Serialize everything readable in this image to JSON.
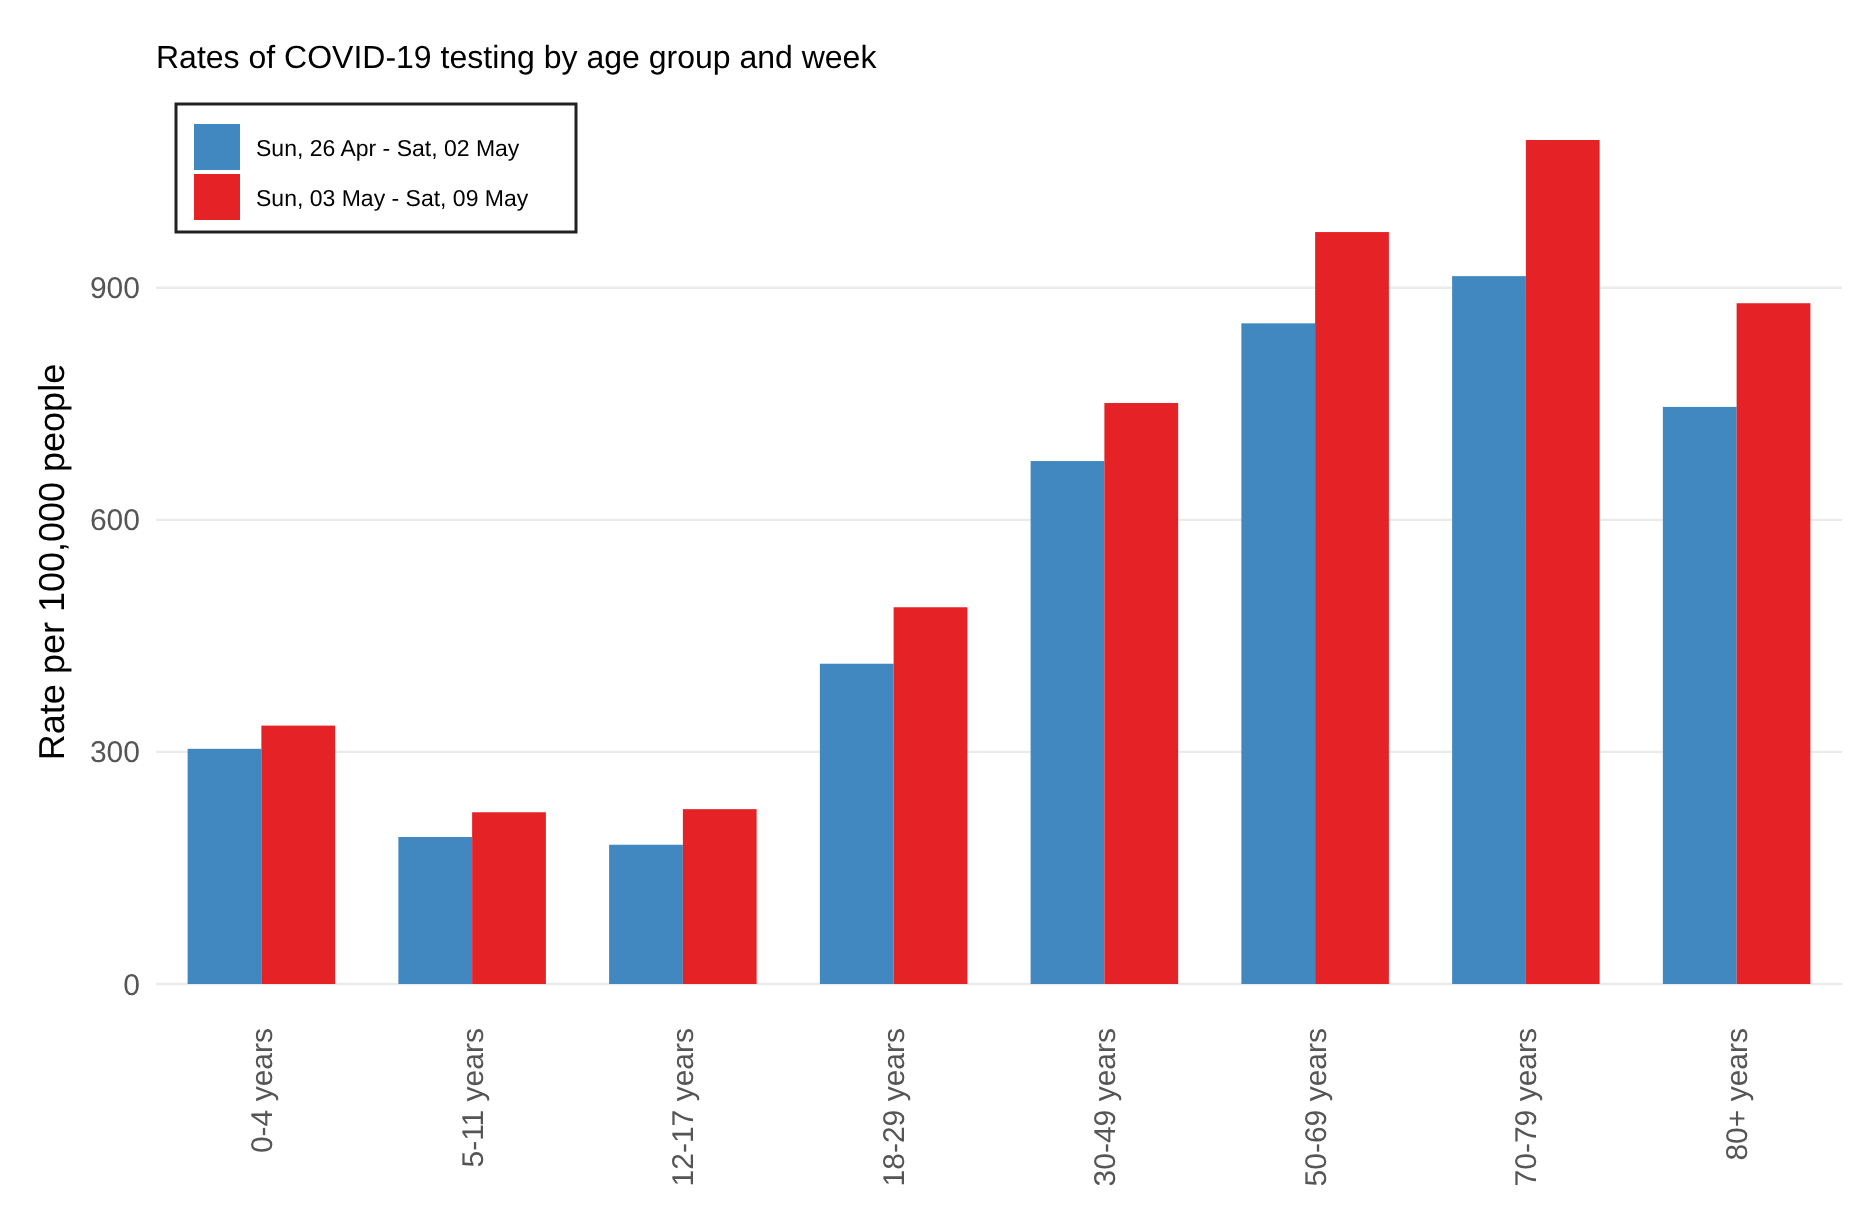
{
  "chart_data": {
    "type": "bar",
    "title": "Rates of COVID-19 testing by age group and week",
    "ylabel": "Rate per 100,000 people",
    "categories": [
      "0-4 years",
      "5-11 years",
      "12-17 years",
      "18-29 years",
      "30-49 years",
      "50-69 years",
      "70-79 years",
      "80+ years"
    ],
    "series": [
      {
        "name": "Sun, 26 Apr - Sat, 02 May",
        "color": "#4188c0",
        "values": [
          304,
          190,
          180,
          414,
          676,
          854,
          915,
          746
        ]
      },
      {
        "name": "Sun, 03 May - Sat, 09 May",
        "color": "#e52226",
        "values": [
          334,
          222,
          226,
          487,
          751,
          972,
          1091,
          880
        ]
      }
    ],
    "ylim": [
      0,
      1091
    ],
    "yticks": [
      0,
      300,
      600,
      900
    ],
    "grid": "y",
    "legend": "top left"
  }
}
